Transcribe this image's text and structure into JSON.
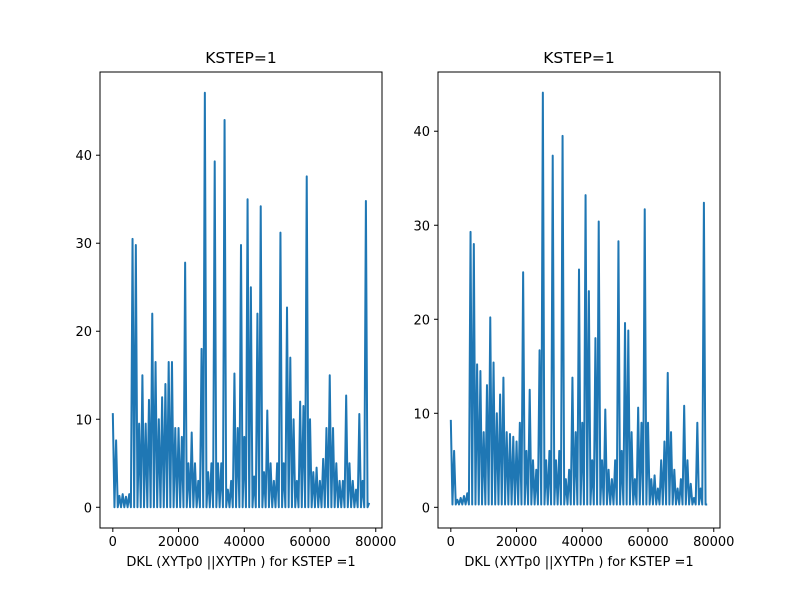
{
  "chart_data": [
    {
      "type": "line",
      "title": "KSTEP=1",
      "xlabel": "DKL (XYTp0 ||XYTPn ) for KSTEP =1",
      "x": [
        0,
        500,
        1000,
        1500,
        2000,
        2500,
        3000,
        3500,
        4000,
        4500,
        5000,
        5500,
        6000,
        6500,
        7000,
        7500,
        8000,
        8500,
        9000,
        9500,
        10000,
        10500,
        11000,
        11500,
        12000,
        12500,
        13000,
        13500,
        14000,
        14500,
        15000,
        15500,
        16000,
        16500,
        17000,
        17500,
        18000,
        18500,
        19000,
        19500,
        20000,
        20500,
        21000,
        21500,
        22000,
        22500,
        23000,
        23500,
        24000,
        24500,
        25000,
        25500,
        26000,
        26500,
        27000,
        27500,
        28000,
        28500,
        29000,
        29500,
        30000,
        30500,
        31000,
        31500,
        32000,
        32500,
        33000,
        33500,
        34000,
        34500,
        35000,
        35500,
        36000,
        36500,
        37000,
        37500,
        38000,
        38500,
        39000,
        39500,
        40000,
        40500,
        41000,
        41500,
        42000,
        42500,
        43000,
        43500,
        44000,
        44500,
        45000,
        45500,
        46000,
        46500,
        47000,
        47500,
        48000,
        48500,
        49000,
        49500,
        50000,
        50500,
        51000,
        51500,
        52000,
        52500,
        53000,
        53500,
        54000,
        54500,
        55000,
        55500,
        56000,
        56500,
        57000,
        57500,
        58000,
        58500,
        59000,
        59500,
        60000,
        60500,
        61000,
        61500,
        62000,
        62500,
        63000,
        63500,
        64000,
        64500,
        65000,
        65500,
        66000,
        66500,
        67000,
        67500,
        68000,
        68500,
        69000,
        69500,
        70000,
        70500,
        71000,
        71500,
        72000,
        72500,
        73000,
        73500,
        74000,
        74500,
        75000,
        75500,
        76000,
        76500,
        77000,
        77500,
        78000
      ],
      "values": [
        10.7,
        0,
        7.6,
        0,
        1.3,
        0,
        1.5,
        0,
        1.2,
        0,
        1.5,
        0,
        30.5,
        0,
        29.8,
        0,
        9.5,
        0,
        15,
        0,
        9.5,
        0,
        12.2,
        0,
        22,
        0,
        16.5,
        0,
        10,
        0,
        12.5,
        0,
        14,
        0,
        16.5,
        0,
        16.5,
        0,
        9,
        0,
        9,
        0,
        8,
        0,
        27.8,
        0,
        5,
        0,
        8.5,
        0,
        5,
        0,
        3,
        0,
        18,
        0,
        47.1,
        0,
        4,
        0,
        5,
        0,
        39.3,
        0,
        5,
        0,
        5,
        0,
        44,
        0,
        2,
        0,
        3,
        0,
        15.2,
        0,
        9,
        0,
        29.8,
        0,
        8,
        0,
        35,
        0,
        25,
        0,
        3.5,
        0,
        22,
        0,
        34.2,
        0,
        4,
        0,
        11,
        0,
        5,
        0,
        3,
        0,
        5,
        0,
        31.2,
        0,
        5,
        0,
        22.7,
        0,
        17,
        0,
        10,
        0,
        3,
        0,
        12,
        0,
        11.5,
        0,
        37.6,
        0,
        10,
        0,
        4,
        0,
        4.5,
        0,
        3,
        0,
        5.5,
        0,
        9,
        0,
        15,
        0,
        9,
        0,
        5,
        0,
        3,
        0,
        3,
        0,
        12.7,
        0,
        5,
        0,
        3,
        0,
        2,
        0,
        10.6,
        0,
        3,
        0,
        34.8,
        0,
        0.5
      ],
      "color": "#1f77b4",
      "xlim": [
        -3900,
        81900
      ],
      "xticks": [
        0,
        20000,
        40000,
        60000,
        80000
      ],
      "ylim": [
        -2.355,
        49.455
      ],
      "yticks": [
        0,
        10,
        20,
        30,
        40
      ]
    },
    {
      "type": "line",
      "title": "KSTEP=1",
      "xlabel": "DKL (XYTp0 ||XYTPn ) for KSTEP =1",
      "x": [
        0,
        500,
        1000,
        1500,
        2000,
        2500,
        3000,
        3500,
        4000,
        4500,
        5000,
        5500,
        6000,
        6500,
        7000,
        7500,
        8000,
        8500,
        9000,
        9500,
        10000,
        10500,
        11000,
        11500,
        12000,
        12500,
        13000,
        13500,
        14000,
        14500,
        15000,
        15500,
        16000,
        16500,
        17000,
        17500,
        18000,
        18500,
        19000,
        19500,
        20000,
        20500,
        21000,
        21500,
        22000,
        22500,
        23000,
        23500,
        24000,
        24500,
        25000,
        25500,
        26000,
        26500,
        27000,
        27500,
        28000,
        28500,
        29000,
        29500,
        30000,
        30500,
        31000,
        31500,
        32000,
        32500,
        33000,
        33500,
        34000,
        34500,
        35000,
        35500,
        36000,
        36500,
        37000,
        37500,
        38000,
        38500,
        39000,
        39500,
        40000,
        40500,
        41000,
        41500,
        42000,
        42500,
        43000,
        43500,
        44000,
        44500,
        45000,
        45500,
        46000,
        46500,
        47000,
        47500,
        48000,
        48500,
        49000,
        49500,
        50000,
        50500,
        51000,
        51500,
        52000,
        52500,
        53000,
        53500,
        54000,
        54500,
        55000,
        55500,
        56000,
        56500,
        57000,
        57500,
        58000,
        58500,
        59000,
        59500,
        60000,
        60500,
        61000,
        61500,
        62000,
        62500,
        63000,
        63500,
        64000,
        64500,
        65000,
        65500,
        66000,
        66500,
        67000,
        67500,
        68000,
        68500,
        69000,
        69500,
        70000,
        70500,
        71000,
        71500,
        72000,
        72500,
        73000,
        73500,
        74000,
        74500,
        75000,
        75500,
        76000,
        76500,
        77000,
        77500,
        78000
      ],
      "values": [
        9.3,
        0.3,
        6,
        0.3,
        0.8,
        0.3,
        1,
        0.3,
        1.2,
        0.3,
        1.5,
        0.3,
        29.3,
        0.3,
        28,
        0.3,
        15.2,
        0.3,
        14.5,
        0.3,
        8,
        0.3,
        13,
        0.3,
        20.2,
        0.3,
        15.4,
        0.3,
        10,
        0.3,
        12,
        0.3,
        13.8,
        0.3,
        8,
        0.3,
        7.8,
        0.3,
        7.5,
        0.3,
        7,
        0.3,
        9,
        0.3,
        25,
        0.3,
        6,
        0.3,
        12.5,
        0.3,
        5,
        0.3,
        4,
        0.3,
        16.7,
        0.3,
        44.1,
        0.3,
        5,
        0.3,
        6,
        0.3,
        37.4,
        0.3,
        5,
        0.3,
        6,
        0.3,
        39.5,
        0.3,
        3,
        0.3,
        4,
        0.3,
        13.8,
        0.3,
        8,
        0.3,
        25.3,
        0.3,
        9,
        0.3,
        33.2,
        0.3,
        23,
        0.3,
        5,
        0.3,
        18,
        0.3,
        30.4,
        0.3,
        5,
        0.3,
        10.4,
        0.3,
        4,
        0.3,
        3,
        0.3,
        5,
        0.3,
        28.3,
        0.3,
        6,
        0.3,
        19.6,
        0.3,
        18.8,
        0.3,
        8,
        0.3,
        3,
        0.3,
        10.6,
        0.3,
        9,
        0.3,
        31.7,
        0.3,
        9,
        0.3,
        3,
        0.3,
        3.4,
        0.3,
        2,
        0.3,
        5,
        0.3,
        7,
        0.3,
        14.3,
        0.3,
        8,
        0.3,
        4,
        0.3,
        2,
        0.3,
        3,
        0.3,
        10.8,
        0.3,
        5,
        0.3,
        2.5,
        0.3,
        1,
        0.3,
        9,
        0.3,
        2,
        0.3,
        32.4,
        0.3,
        0.3
      ],
      "color": "#1f77b4",
      "xlim": [
        -3900,
        81900
      ],
      "xticks": [
        0,
        20000,
        40000,
        60000,
        80000
      ],
      "ylim": [
        -2.2,
        46.3
      ],
      "yticks": [
        0,
        10,
        20,
        30,
        40
      ]
    }
  ]
}
